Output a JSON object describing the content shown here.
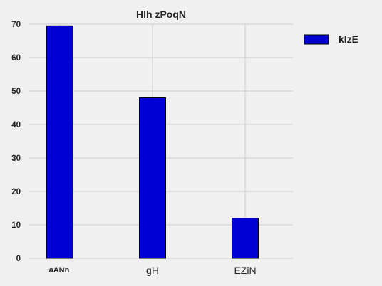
{
  "chart_data": {
    "type": "bar",
    "title": "Hlh zPoqN",
    "xlabel": "",
    "ylabel": "",
    "categories": [
      "aANn",
      "gH",
      "EZiN"
    ],
    "series": [
      {
        "name": "kIzE",
        "values": [
          69.5,
          48,
          12
        ]
      }
    ],
    "ylim": [
      0,
      70
    ],
    "yticks": [
      0,
      10,
      20,
      30,
      40,
      50,
      60,
      70
    ],
    "grid": true,
    "legend_position": "top-right",
    "colors": {
      "background": "#f0f0f0",
      "bar": "#0000d4",
      "bar_edge": "#000000",
      "grid": "#cbcbcb",
      "text": "#222222"
    }
  }
}
